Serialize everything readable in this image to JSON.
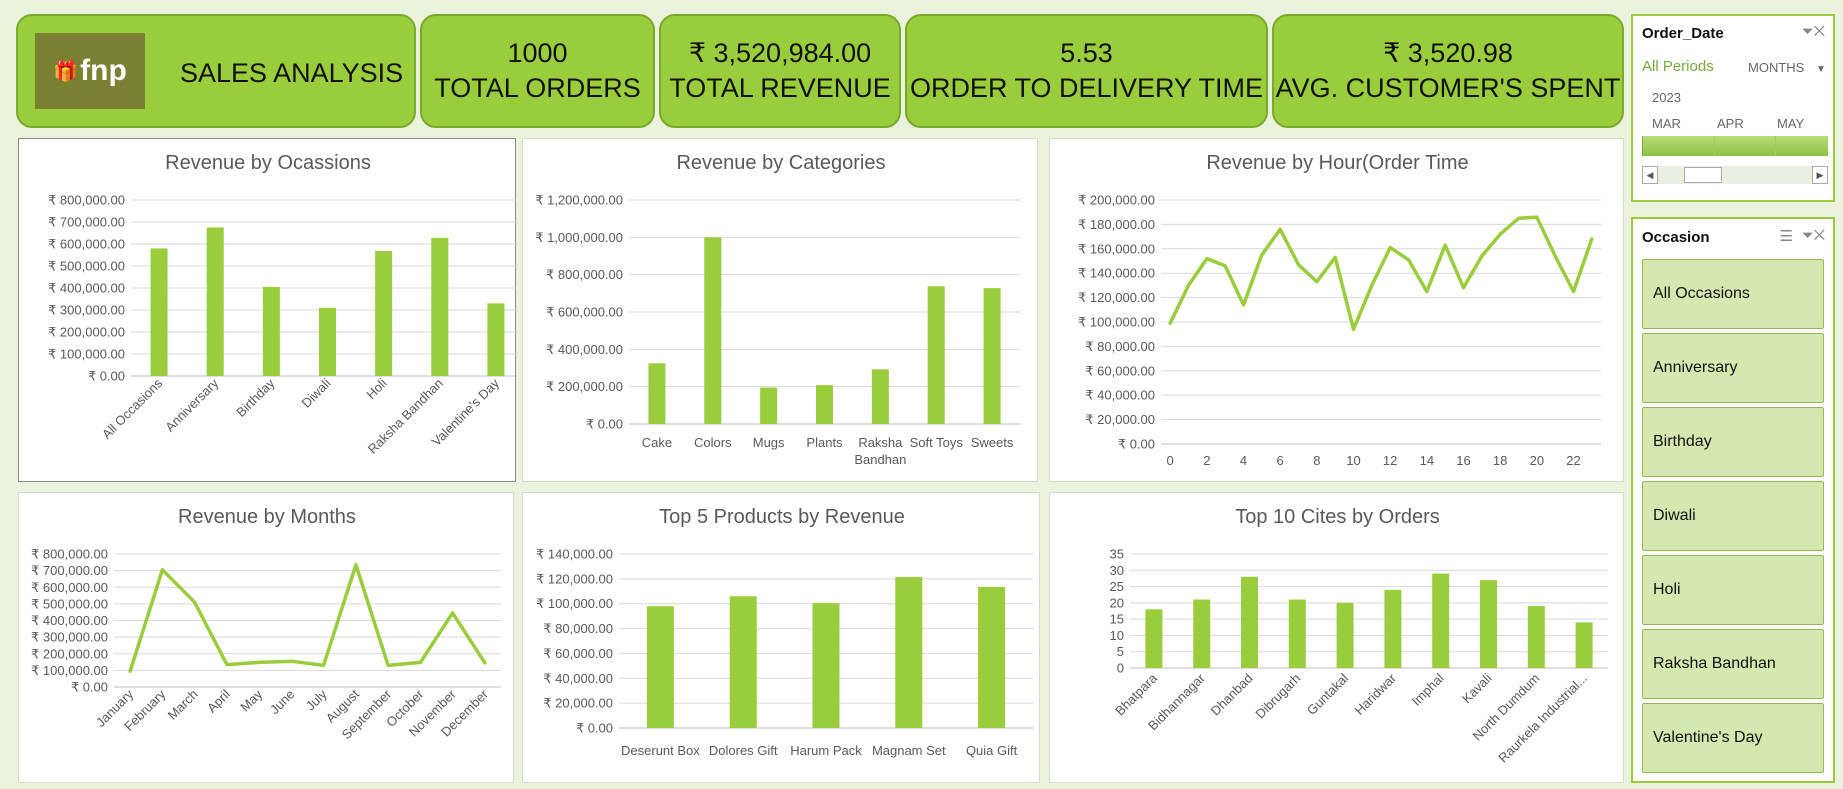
{
  "header": {
    "logo_text": "fnp",
    "logo_icon": "gift-icon",
    "title": "SALES ANALYSIS"
  },
  "kpis": [
    {
      "value": "1000",
      "label": "TOTAL ORDERS"
    },
    {
      "value": "₹ 3,520,984.00",
      "label": "TOTAL REVENUE"
    },
    {
      "value": "5.53",
      "label": "ORDER TO DELIVERY TIME"
    },
    {
      "value": "₹ 3,520.98",
      "label": "AVG. CUSTOMER'S SPENT"
    }
  ],
  "colors": {
    "accent": "#9acd3c",
    "accent_border": "#79a92b",
    "background": "#ebf3de",
    "slicer_button": "#d5e8b0"
  },
  "order_date_slicer": {
    "title": "Order_Date",
    "period_label": "All Periods",
    "granularity": "MONTHS",
    "year": "2023",
    "months": [
      "MAR",
      "APR",
      "MAY"
    ]
  },
  "occasion_slicer": {
    "title": "Occasion",
    "items": [
      "All Occasions",
      "Anniversary",
      "Birthday",
      "Diwali",
      "Holi",
      "Raksha Bandhan",
      "Valentine's Day"
    ]
  },
  "chart_data": [
    {
      "id": "occasions",
      "type": "bar",
      "title": "Revenue by Ocassions",
      "categories": [
        "All Occasions",
        "Anniversary",
        "Birthday",
        "Diwali",
        "Holi",
        "Raksha Bandhan",
        "Valentine's Day"
      ],
      "values": [
        580000,
        675000,
        405000,
        310000,
        568000,
        628000,
        330000
      ],
      "yticks": [
        "₹ 0.00",
        "₹ 100,000.00",
        "₹ 200,000.00",
        "₹ 300,000.00",
        "₹ 400,000.00",
        "₹ 500,000.00",
        "₹ 600,000.00",
        "₹ 700,000.00",
        "₹ 800,000.00"
      ],
      "ylim": [
        0,
        800000
      ],
      "grid": true,
      "legend": "none"
    },
    {
      "id": "categories",
      "type": "bar",
      "title": "Revenue by Categories",
      "categories": [
        "Cake",
        "Colors",
        "Mugs",
        "Plants",
        "Raksha Bandhan",
        "Soft Toys",
        "Sweets"
      ],
      "values": [
        325000,
        1000000,
        195000,
        208000,
        293000,
        738000,
        728000
      ],
      "yticks": [
        "₹ 0.00",
        "₹ 200,000.00",
        "₹ 400,000.00",
        "₹ 600,000.00",
        "₹ 800,000.00",
        "₹ 1,000,000.00",
        "₹ 1,200,000.00"
      ],
      "ylim": [
        0,
        1200000
      ],
      "grid": true,
      "legend": "none"
    },
    {
      "id": "hours",
      "type": "line",
      "title": "Revenue by Hour(Order Time",
      "x": [
        0,
        1,
        2,
        3,
        4,
        5,
        6,
        7,
        8,
        9,
        10,
        11,
        12,
        13,
        14,
        15,
        16,
        17,
        18,
        19,
        20,
        21,
        22,
        23
      ],
      "values": [
        99000,
        130000,
        152000,
        146000,
        114000,
        155000,
        176000,
        147000,
        133000,
        153000,
        94000,
        130000,
        161000,
        151000,
        125000,
        163000,
        128000,
        154000,
        172000,
        185000,
        186000,
        154000,
        125000,
        168000
      ],
      "xticks": [
        "0",
        "2",
        "4",
        "6",
        "8",
        "10",
        "12",
        "14",
        "16",
        "18",
        "20",
        "22"
      ],
      "yticks": [
        "₹ 0.00",
        "₹ 20,000.00",
        "₹ 40,000.00",
        "₹ 60,000.00",
        "₹ 80,000.00",
        "₹ 100,000.00",
        "₹ 120,000.00",
        "₹ 140,000.00",
        "₹ 160,000.00",
        "₹ 180,000.00",
        "₹ 200,000.00"
      ],
      "ylim": [
        0,
        200000
      ],
      "grid": true,
      "legend": "none"
    },
    {
      "id": "months",
      "type": "line",
      "title": "Revenue by Months",
      "categories": [
        "January",
        "February",
        "March",
        "April",
        "May",
        "June",
        "July",
        "August",
        "September",
        "October",
        "November",
        "December"
      ],
      "values": [
        95000,
        705000,
        510000,
        135000,
        148000,
        155000,
        130000,
        735000,
        130000,
        148000,
        445000,
        145000
      ],
      "yticks": [
        "₹ 0.00",
        "₹ 100,000.00",
        "₹ 200,000.00",
        "₹ 300,000.00",
        "₹ 400,000.00",
        "₹ 500,000.00",
        "₹ 600,000.00",
        "₹ 700,000.00",
        "₹ 800,000.00"
      ],
      "ylim": [
        0,
        800000
      ],
      "grid": true,
      "legend": "none"
    },
    {
      "id": "products",
      "type": "bar",
      "title": "Top 5 Products by Revenue",
      "categories": [
        "Deserunt Box",
        "Dolores Gift",
        "Harum Pack",
        "Magnam Set",
        "Quia Gift"
      ],
      "values": [
        98000,
        106000,
        100500,
        121500,
        113500
      ],
      "yticks": [
        "₹ 0.00",
        "₹ 20,000.00",
        "₹ 40,000.00",
        "₹ 60,000.00",
        "₹ 80,000.00",
        "₹ 100,000.00",
        "₹ 120,000.00",
        "₹ 140,000.00"
      ],
      "ylim": [
        0,
        140000
      ],
      "grid": true,
      "legend": "none"
    },
    {
      "id": "cities",
      "type": "bar",
      "title": "Top 10 Cites by Orders",
      "categories": [
        "Bhatpara",
        "Bidhannagar",
        "Dhanbad",
        "Dibrugarh",
        "Guntakal",
        "Haridwar",
        "Imphal",
        "Kavali",
        "North Dumdum",
        "Raurkela Industrial..."
      ],
      "values": [
        18,
        21,
        28,
        21,
        20,
        24,
        29,
        27,
        19,
        14
      ],
      "yticks": [
        "0",
        "5",
        "10",
        "15",
        "20",
        "25",
        "30",
        "35"
      ],
      "ylim": [
        0,
        35
      ],
      "grid": true,
      "legend": "none"
    }
  ]
}
